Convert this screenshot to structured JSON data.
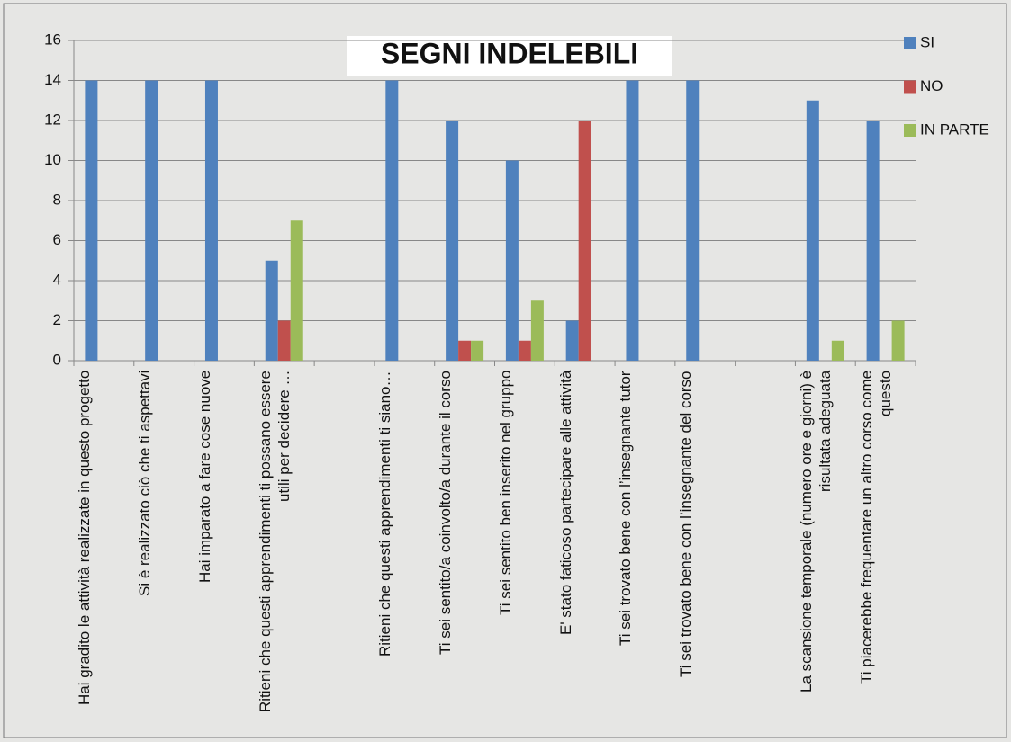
{
  "chart_data": {
    "type": "bar",
    "title": "SEGNI INDELEBILI",
    "categories": [
      "Hai gradito le attività realizzate in questo progetto",
      "Si è realizzato ciò che ti aspettavi",
      "Hai imparato a fare cose nuove",
      "Ritieni che questi apprendimenti ti possano essere utili per decidere …",
      null,
      "Ritieni che questi apprendimenti ti siano…",
      "Ti sei  sentito/a coinvolto/a durante il corso",
      "Ti sei sentito ben inserito nel gruppo",
      "E' stato faticoso partecipare alle attività",
      "Ti sei trovato bene con l’insegnante tutor",
      "Ti sei trovato bene con l’insegnante del corso",
      null,
      "La scansione temporale (numero ore e giorni) è risultata adeguata",
      "Ti piacerebbe frequentare un altro corso come questo"
    ],
    "series": [
      {
        "name": "SI",
        "color": "#4f81bd",
        "values": [
          14,
          14,
          14,
          5,
          null,
          14,
          12,
          10,
          2,
          14,
          14,
          null,
          13,
          12
        ]
      },
      {
        "name": "NO",
        "color": "#c0504d",
        "values": [
          null,
          null,
          null,
          2,
          null,
          null,
          1,
          1,
          12,
          null,
          null,
          null,
          null,
          null
        ]
      },
      {
        "name": "IN PARTE",
        "color": "#9bbb59",
        "values": [
          null,
          null,
          null,
          7,
          null,
          null,
          1,
          3,
          null,
          null,
          null,
          null,
          1,
          2
        ]
      }
    ],
    "ylim": [
      0,
      16
    ],
    "yticks": [
      0,
      2,
      4,
      6,
      8,
      10,
      12,
      14,
      16
    ],
    "grid": true,
    "legend": "right"
  }
}
